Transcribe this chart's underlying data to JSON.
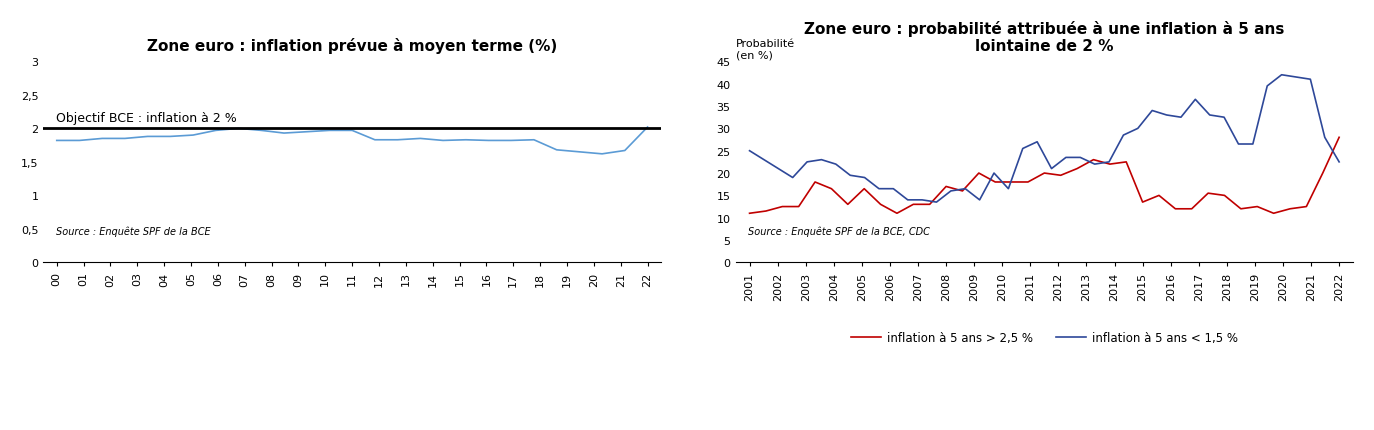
{
  "chart1": {
    "title": "Zone euro : inflation prévue à moyen terme (%)",
    "x_labels": [
      "00",
      "01",
      "02",
      "03",
      "04",
      "05",
      "06",
      "07",
      "08",
      "09",
      "10",
      "11",
      "12",
      "13",
      "14",
      "15",
      "16",
      "17",
      "18",
      "19",
      "20",
      "21",
      "22"
    ],
    "y_values": [
      1.82,
      1.82,
      1.85,
      1.85,
      1.88,
      1.88,
      1.9,
      1.97,
      2.0,
      1.97,
      1.93,
      1.95,
      1.97,
      1.97,
      1.83,
      1.83,
      1.85,
      1.82,
      1.83,
      1.82,
      1.82,
      1.83,
      1.68,
      1.65,
      1.62,
      1.67,
      2.02
    ],
    "line_color": "#5B9BD5",
    "reference_line": 2.0,
    "reference_label": "Objectif BCE : inflation à 2 %",
    "source": "Source : Enquête SPF de la BCE",
    "ylim": [
      0,
      3
    ],
    "yticks": [
      0,
      0.5,
      1,
      1.5,
      2,
      2.5,
      3
    ],
    "ytick_labels": [
      "0",
      "0,5",
      "1",
      "1,5",
      "2",
      "2,5",
      "3"
    ]
  },
  "chart2": {
    "title": "Zone euro : probabilité attribuée à une inflation à 5 ans\nlointaine de 2 %",
    "ylabel": "Probabilité\n(en %)",
    "x_labels": [
      "2001",
      "2002",
      "2003",
      "2004",
      "2005",
      "2006",
      "2007",
      "2008",
      "2009",
      "2010",
      "2011",
      "2012",
      "2013",
      "2014",
      "2015",
      "2016",
      "2017",
      "2018",
      "2019",
      "2020",
      "2021",
      "2022"
    ],
    "red_values": [
      11.0,
      11.5,
      12.5,
      12.5,
      18.0,
      16.5,
      13.0,
      16.5,
      13.0,
      11.0,
      13.0,
      13.0,
      17.0,
      16.0,
      20.0,
      18.0,
      18.0,
      18.0,
      20.0,
      19.5,
      21.0,
      23.0,
      22.0,
      22.5,
      13.5,
      15.0,
      12.0,
      12.0,
      15.5,
      15.0,
      12.0,
      12.5,
      11.0,
      12.0,
      12.5,
      20.0,
      28.0
    ],
    "blue_values": [
      25.0,
      23.0,
      21.0,
      19.0,
      22.5,
      23.0,
      22.0,
      19.5,
      19.0,
      16.5,
      16.5,
      14.0,
      14.0,
      13.5,
      16.0,
      16.5,
      14.0,
      20.0,
      16.5,
      25.5,
      27.0,
      21.0,
      23.5,
      23.5,
      22.0,
      22.5,
      28.5,
      30.0,
      34.0,
      33.0,
      32.5,
      36.5,
      33.0,
      32.5,
      26.5,
      26.5,
      39.5,
      42.0,
      41.5,
      41.0,
      28.0,
      22.5
    ],
    "red_color": "#C00000",
    "blue_color": "#2E4899",
    "red_label": "inflation à 5 ans > 2,5 %",
    "blue_label": "inflation à 5 ans < 1,5 %",
    "source": "Source : Enquête SPF de la BCE, CDC",
    "ylim": [
      0,
      45
    ],
    "yticks": [
      0,
      5,
      10,
      15,
      20,
      25,
      30,
      35,
      40,
      45
    ]
  }
}
